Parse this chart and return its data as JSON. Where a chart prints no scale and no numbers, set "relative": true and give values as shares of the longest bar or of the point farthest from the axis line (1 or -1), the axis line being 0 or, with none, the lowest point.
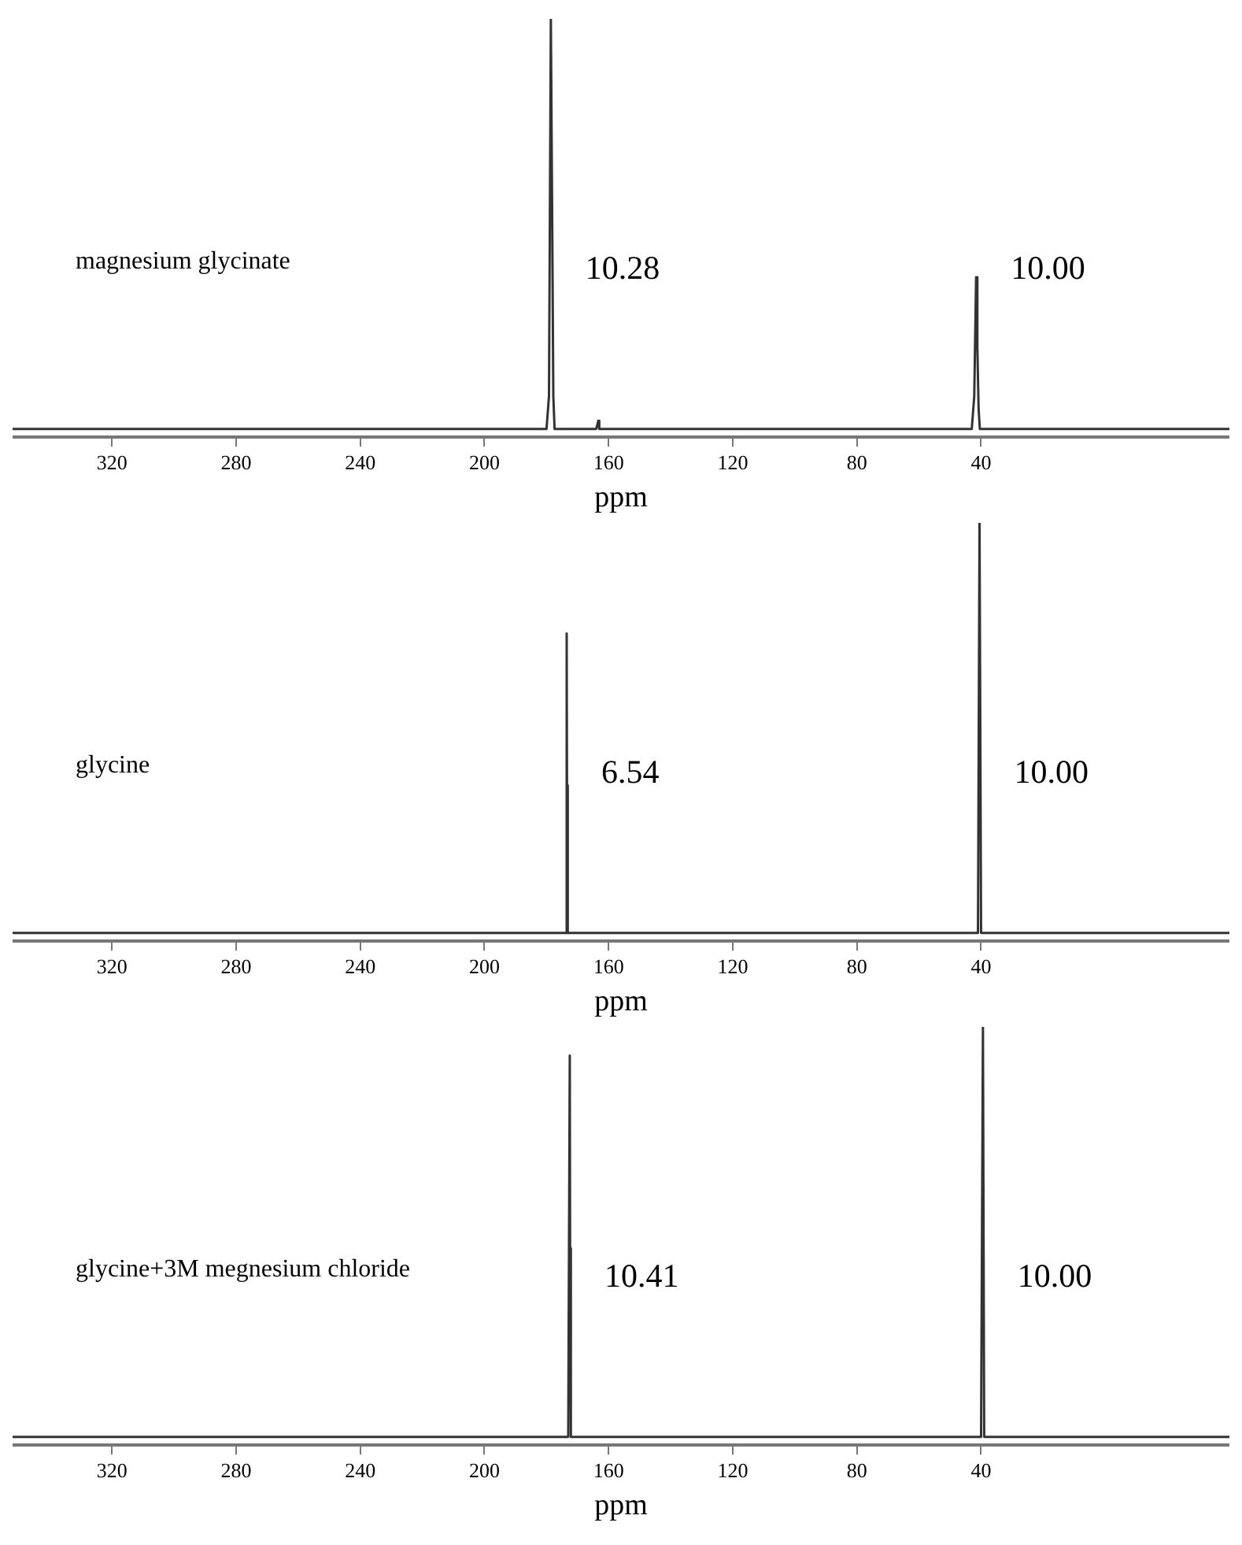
{
  "chart_data": [
    {
      "type": "line",
      "relative": true,
      "xlabel": "ppm",
      "xlim": [
        352,
        -40
      ],
      "xticks": [
        320,
        280,
        240,
        200,
        160,
        120,
        80,
        40
      ],
      "grid": false,
      "series": [
        {
          "name": "magnesium glycinate",
          "color": "#333333",
          "x": [
            352,
            180,
            179.2,
            178.6,
            178.2,
            177.8,
            177.4,
            164,
            163.3,
            163,
            43,
            42.2,
            41.6,
            41.2,
            40.8,
            40.4,
            -40
          ],
          "values": [
            0,
            0,
            0.08,
            1,
            0.55,
            0.08,
            0,
            0,
            0.02,
            0,
            0,
            0.08,
            0.37,
            0.2,
            0.05,
            0,
            0
          ]
        }
      ],
      "annotations": [
        "10.28",
        "10.00"
      ]
    },
    {
      "type": "line",
      "relative": true,
      "xlabel": "ppm",
      "xlim": [
        352,
        -40
      ],
      "xticks": [
        320,
        280,
        240,
        200,
        160,
        120,
        80,
        40
      ],
      "grid": false,
      "series": [
        {
          "name": "glycine",
          "color": "#333333",
          "x": [
            352,
            174,
            173.5,
            173.4,
            173.3,
            173,
            41,
            40.5,
            40,
            -40
          ],
          "values": [
            0,
            0,
            0.73,
            0.36,
            0,
            0,
            0,
            1,
            0,
            0
          ]
        }
      ],
      "annotations": [
        "6.54",
        "10.00"
      ]
    },
    {
      "type": "line",
      "relative": true,
      "xlabel": "ppm",
      "xlim": [
        352,
        -40
      ],
      "xticks": [
        320,
        280,
        240,
        200,
        160,
        120,
        80,
        40
      ],
      "grid": false,
      "series": [
        {
          "name": "glycine+3M megnesium chloride",
          "color": "#333333",
          "x": [
            352,
            173,
            172.5,
            172.4,
            172.3,
            172,
            40,
            39.4,
            39,
            -40
          ],
          "values": [
            0,
            0,
            0.93,
            0.46,
            0,
            0,
            0,
            1,
            0,
            0
          ]
        }
      ],
      "annotations": [
        "10.41",
        "10.00"
      ]
    }
  ]
}
